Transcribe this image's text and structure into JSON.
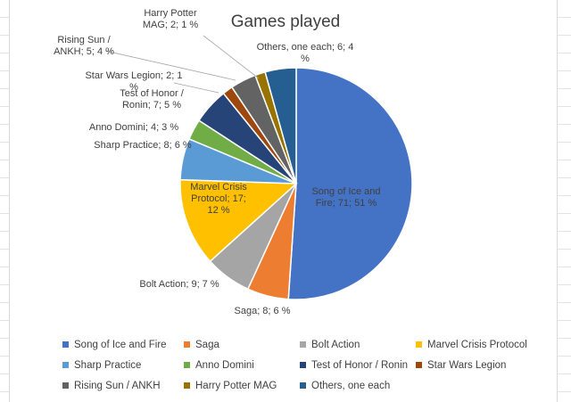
{
  "chart_data": {
    "type": "pie",
    "title": "Games played",
    "slices": [
      {
        "name": "Song of Ice and Fire",
        "value": 71,
        "percent": 51,
        "color": "#4472C4",
        "label": "Song of Ice and Fire; 71; 51 %"
      },
      {
        "name": "Saga",
        "value": 8,
        "percent": 6,
        "color": "#ED7D31",
        "label": "Saga; 8; 6 %"
      },
      {
        "name": "Bolt Action",
        "value": 9,
        "percent": 7,
        "color": "#A5A5A5",
        "label": "Bolt Action; 9; 7 %"
      },
      {
        "name": "Marvel Crisis Protocol",
        "value": 17,
        "percent": 12,
        "color": "#FFC000",
        "label": "Marvel Crisis Protocol; 17; 12 %"
      },
      {
        "name": "Sharp Practice",
        "value": 8,
        "percent": 6,
        "color": "#5B9BD5",
        "label": "Sharp Practice; 8; 6 %"
      },
      {
        "name": "Anno Domini",
        "value": 4,
        "percent": 3,
        "color": "#70AD47",
        "label": "Anno Domini; 4; 3 %"
      },
      {
        "name": "Test of Honor / Ronin",
        "value": 7,
        "percent": 5,
        "color": "#264478",
        "label": "Test of Honor / Ronin; 7; 5 %"
      },
      {
        "name": "Star Wars Legion",
        "value": 2,
        "percent": 1,
        "color": "#9E480E",
        "label": "Star Wars Legion; 2; 1 %"
      },
      {
        "name": "Rising Sun / ANKH",
        "value": 5,
        "percent": 4,
        "color": "#636363",
        "label": "Rising Sun / ANKH; 5; 4 %"
      },
      {
        "name": "Harry Potter MAG",
        "value": 2,
        "percent": 1,
        "color": "#997300",
        "label": "Harry Potter MAG; 2; 1 %"
      },
      {
        "name": "Others, one each",
        "value": 6,
        "percent": 4,
        "color": "#255E91",
        "label": "Others, one each; 6; 4 %"
      }
    ],
    "legend_position": "bottom"
  }
}
